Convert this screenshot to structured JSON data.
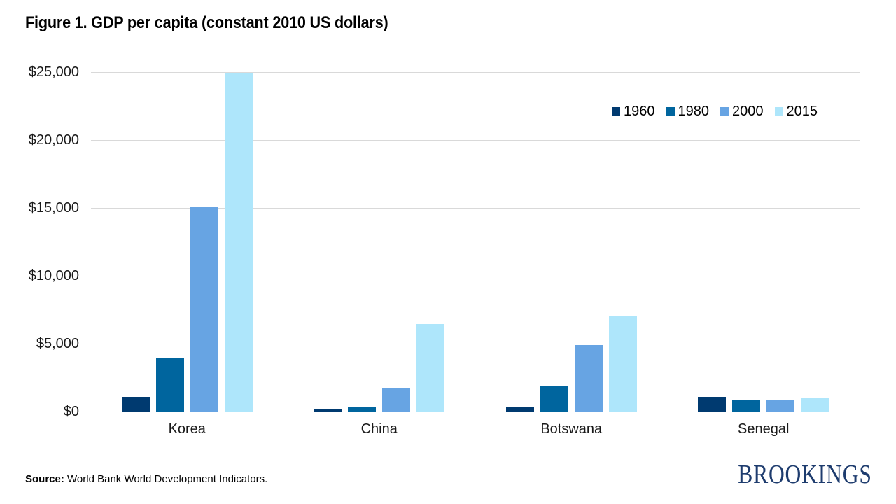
{
  "title": "Figure 1. GDP per capita (constant 2010 US dollars)",
  "chart_data": {
    "type": "bar",
    "title": "Figure 1. GDP per capita (constant 2010 US dollars)",
    "categories": [
      "Korea",
      "China",
      "Botswana",
      "Senegal"
    ],
    "series": [
      {
        "name": "1960",
        "color": "#003A70",
        "values": [
          1100,
          150,
          350,
          1100
        ]
      },
      {
        "name": "1980",
        "color": "#00659E",
        "values": [
          3950,
          300,
          1900,
          880
        ]
      },
      {
        "name": "2000",
        "color": "#67A4E3",
        "values": [
          15100,
          1700,
          4900,
          850
        ]
      },
      {
        "name": "2015",
        "color": "#AEE6FB",
        "values": [
          24950,
          6450,
          7050,
          1000
        ]
      }
    ],
    "xlabel": "",
    "ylabel": "",
    "ylim": [
      0,
      25000
    ],
    "ytick_step": 5000,
    "ytick_labels": [
      "$0",
      "$5,000",
      "$10,000",
      "$15,000",
      "$20,000",
      "$25,000"
    ],
    "grid": true,
    "legend_position": "top-right"
  },
  "footer": {
    "source_label": "Source:",
    "source_text": " World Bank World Development Indicators.",
    "brand": "BROOKINGS"
  },
  "colors": {
    "gridline": "#D9D9D9",
    "axis_line": "#C9C9C9",
    "text": "#1A1A1A",
    "brand_navy": "#1E3C6E"
  }
}
